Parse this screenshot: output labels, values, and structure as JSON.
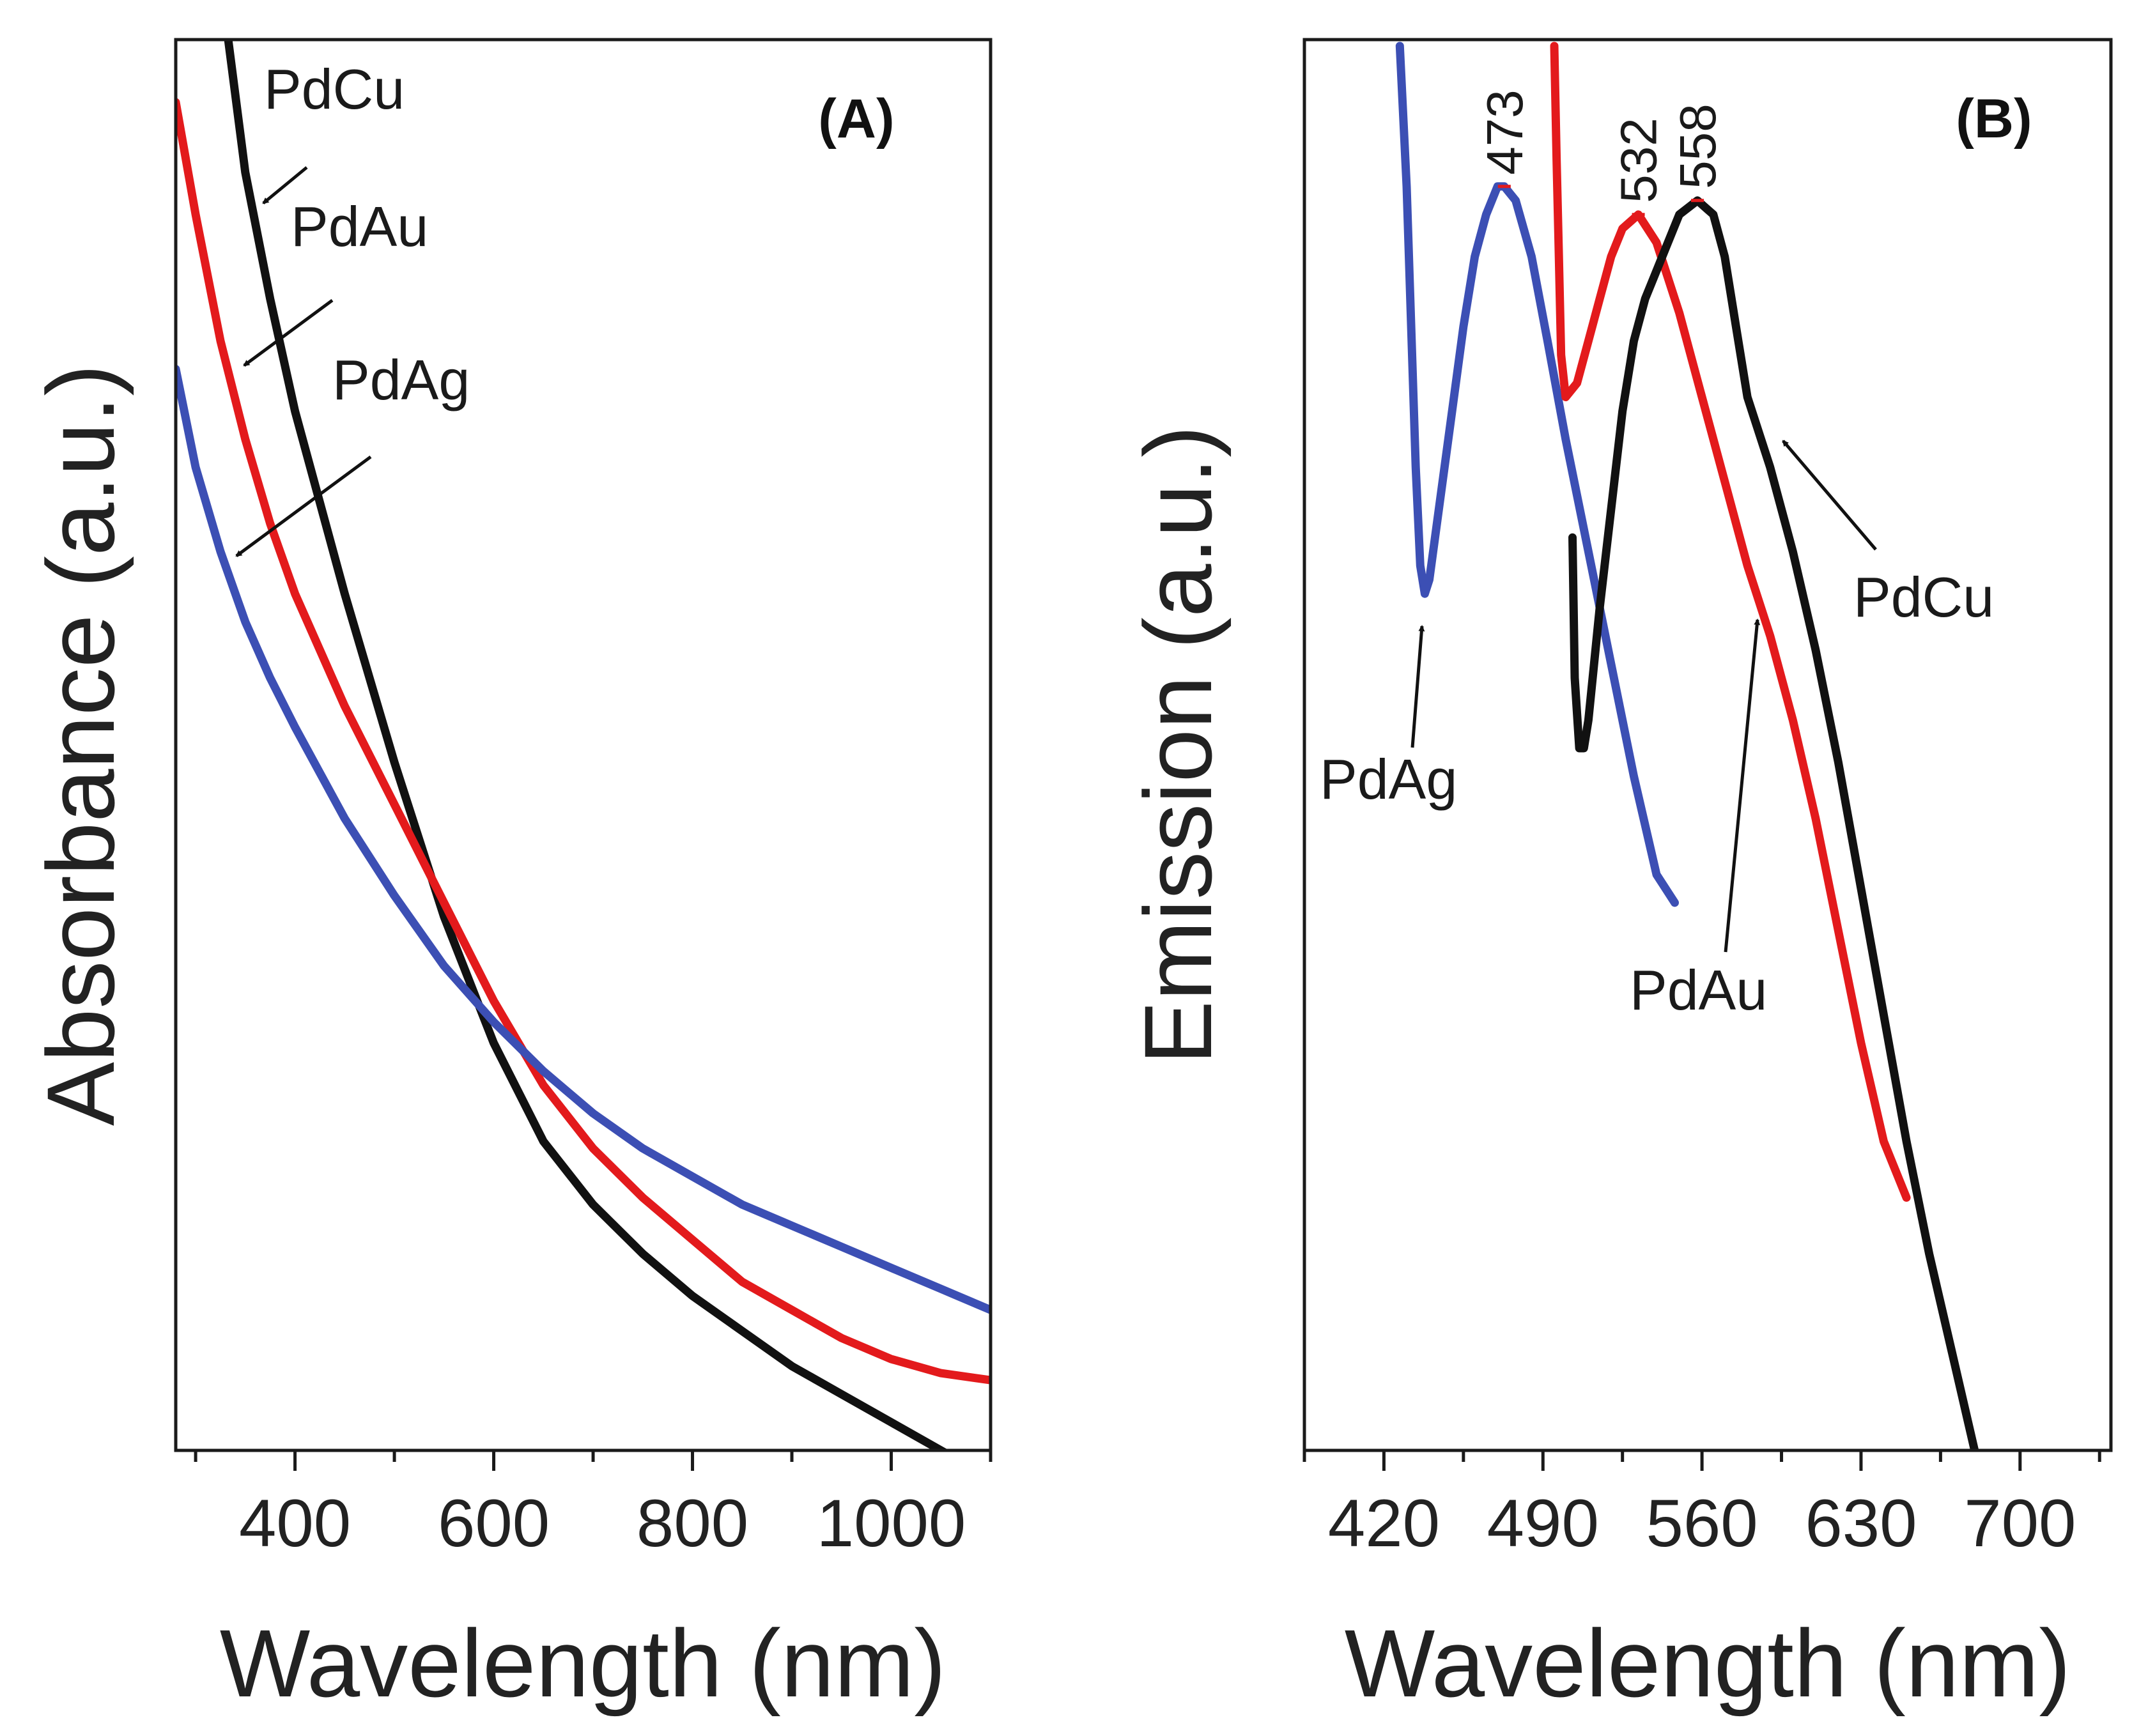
{
  "chart_data": [
    {
      "panel": "(A)",
      "type": "line",
      "xlabel": "Wavelength (nm)",
      "ylabel": "Absorbance (a.u.)",
      "xlim": [
        280,
        1100
      ],
      "ylim": [
        0,
        1
      ],
      "xticks": [
        400,
        600,
        800,
        1000
      ],
      "xtick_labels": [
        "400",
        "600",
        "800",
        "1000"
      ],
      "yticks": [],
      "series": [
        {
          "name": "PdCu",
          "color": "#111111",
          "x": [
            330,
            350,
            375,
            400,
            450,
            500,
            550,
            600,
            650,
            700,
            750,
            800,
            850,
            900,
            950,
            1000,
            1050,
            1100
          ],
          "y": [
            1.02,
            0.91,
            0.82,
            0.74,
            0.61,
            0.49,
            0.38,
            0.29,
            0.22,
            0.175,
            0.14,
            0.11,
            0.085,
            0.06,
            0.04,
            0.02,
            0.0,
            -0.02
          ]
        },
        {
          "name": "PdAu",
          "color": "#e31a1c",
          "x": [
            280,
            300,
            325,
            350,
            375,
            400,
            450,
            500,
            550,
            600,
            650,
            700,
            750,
            800,
            850,
            900,
            950,
            1000,
            1050,
            1100
          ],
          "y": [
            0.96,
            0.88,
            0.79,
            0.72,
            0.66,
            0.61,
            0.53,
            0.46,
            0.39,
            0.32,
            0.26,
            0.215,
            0.18,
            0.15,
            0.12,
            0.1,
            0.08,
            0.065,
            0.055,
            0.05
          ]
        },
        {
          "name": "PdAg",
          "color": "#3c4fb4",
          "x": [
            280,
            300,
            325,
            350,
            375,
            400,
            450,
            500,
            550,
            600,
            650,
            700,
            750,
            800,
            850,
            900,
            950,
            1000,
            1050,
            1100
          ],
          "y": [
            0.77,
            0.7,
            0.64,
            0.59,
            0.55,
            0.515,
            0.45,
            0.395,
            0.345,
            0.305,
            0.27,
            0.24,
            0.215,
            0.195,
            0.175,
            0.16,
            0.145,
            0.13,
            0.115,
            0.1
          ]
        }
      ],
      "annotations": [
        {
          "text": "PdCu",
          "target_x": 375,
          "target_y": 0.82
        },
        {
          "text": "PdAu",
          "target_x": 360,
          "target_y": 0.7
        },
        {
          "text": "PdAg",
          "target_x": 350,
          "target_y": 0.59
        }
      ]
    },
    {
      "panel": "(B)",
      "type": "line",
      "xlabel": "Wavelength (nm)",
      "ylabel": "Emission (a.u.)",
      "xlim": [
        385,
        740
      ],
      "ylim": [
        0,
        1
      ],
      "xticks": [
        420,
        490,
        560,
        630,
        700
      ],
      "xtick_labels": [
        "420",
        "490",
        "560",
        "630",
        "700"
      ],
      "yticks": [],
      "series": [
        {
          "name": "PdAg",
          "color": "#3c4fb4",
          "x": [
            427,
            430,
            432,
            434,
            436,
            438,
            440,
            445,
            450,
            455,
            460,
            465,
            470,
            473,
            478,
            485,
            492,
            500,
            510,
            520,
            530,
            540,
            548
          ],
          "y": [
            1.0,
            0.9,
            0.8,
            0.7,
            0.63,
            0.61,
            0.62,
            0.68,
            0.74,
            0.8,
            0.85,
            0.88,
            0.9,
            0.9,
            0.89,
            0.85,
            0.79,
            0.72,
            0.64,
            0.56,
            0.48,
            0.41,
            0.39
          ]
        },
        {
          "name": "PdAu",
          "color": "#e31a1c",
          "x": [
            495,
            496,
            497,
            498,
            500,
            505,
            510,
            515,
            520,
            525,
            532,
            540,
            550,
            560,
            570,
            580,
            590,
            600,
            610,
            620,
            630,
            640,
            650
          ],
          "y": [
            1.0,
            0.92,
            0.85,
            0.78,
            0.75,
            0.76,
            0.79,
            0.82,
            0.85,
            0.87,
            0.88,
            0.86,
            0.81,
            0.75,
            0.69,
            0.63,
            0.58,
            0.52,
            0.45,
            0.37,
            0.29,
            0.22,
            0.18
          ]
        },
        {
          "name": "PdCu",
          "color": "#111111",
          "x": [
            503,
            504,
            506,
            508,
            510,
            515,
            520,
            525,
            530,
            535,
            540,
            545,
            550,
            558,
            565,
            570,
            575,
            580,
            590,
            600,
            610,
            620,
            630,
            640,
            650,
            660,
            670,
            680
          ],
          "y": [
            0.65,
            0.55,
            0.5,
            0.5,
            0.52,
            0.6,
            0.67,
            0.74,
            0.79,
            0.82,
            0.84,
            0.86,
            0.88,
            0.89,
            0.88,
            0.85,
            0.8,
            0.75,
            0.7,
            0.64,
            0.57,
            0.49,
            0.4,
            0.31,
            0.22,
            0.14,
            0.07,
            0.0
          ]
        }
      ],
      "peak_labels": [
        {
          "text": "473",
          "x": 473,
          "y": 0.9
        },
        {
          "text": "532",
          "x": 532,
          "y": 0.88
        },
        {
          "text": "558",
          "x": 558,
          "y": 0.89
        }
      ],
      "annotations": [
        {
          "text": "PdCu",
          "target_x": 590,
          "target_y": 0.7
        },
        {
          "text": "PdAg",
          "target_x": 438,
          "target_y": 0.61
        },
        {
          "text": "PdAu",
          "target_x": 580,
          "target_y": 0.58
        }
      ]
    }
  ]
}
